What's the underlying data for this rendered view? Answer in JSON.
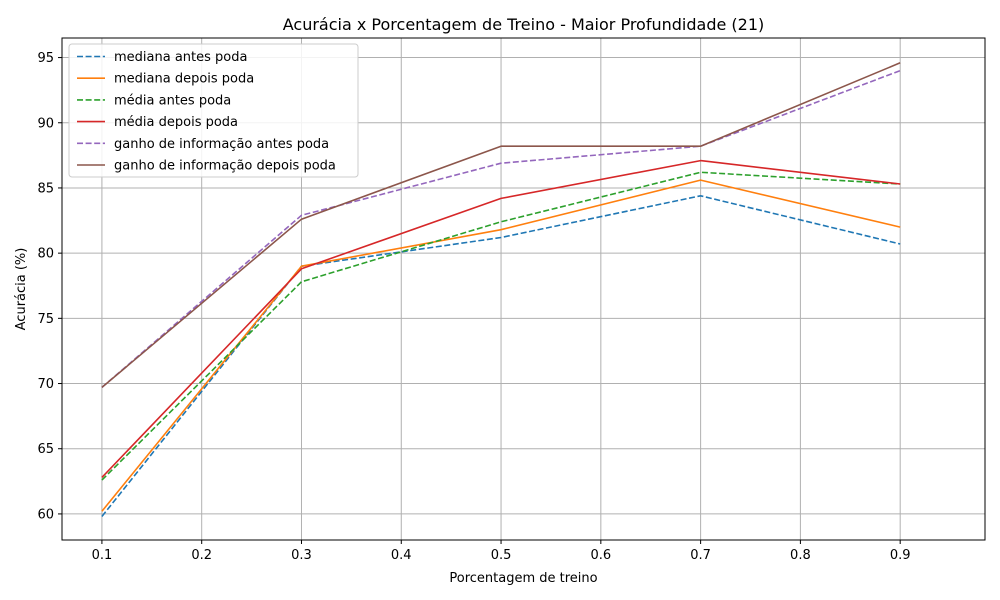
{
  "chart_data": {
    "type": "line",
    "title": "Acurácia x Porcentagem de Treino - Maior Profundidade (21)",
    "xlabel": "Porcentagem de treino",
    "ylabel": "Acurácia (%)",
    "xlim": [
      0.06,
      0.985
    ],
    "ylim": [
      58.0,
      96.5
    ],
    "xticks": [
      "0.1",
      "0.2",
      "0.3",
      "0.4",
      "0.5",
      "0.6",
      "0.7",
      "0.8",
      "0.9"
    ],
    "yticks": [
      "60",
      "65",
      "70",
      "75",
      "80",
      "85",
      "90",
      "95"
    ],
    "grid": true,
    "legend_position": "top-left",
    "x": [
      0.1,
      0.3,
      0.5,
      0.7,
      0.9
    ],
    "series": [
      {
        "name": "mediana antes poda",
        "values": [
          59.8,
          79.0,
          81.2,
          84.4,
          80.7
        ],
        "color": "#1f77b4",
        "dash": true
      },
      {
        "name": "mediana depois poda",
        "values": [
          60.2,
          79.0,
          81.8,
          85.6,
          82.0
        ],
        "color": "#ff7f0e",
        "dash": false
      },
      {
        "name": "média antes poda",
        "values": [
          62.6,
          77.8,
          82.4,
          86.2,
          85.3
        ],
        "color": "#2ca02c",
        "dash": true
      },
      {
        "name": "média depois poda",
        "values": [
          62.8,
          78.8,
          84.2,
          87.1,
          85.3
        ],
        "color": "#d62728",
        "dash": false
      },
      {
        "name": "ganho de informação antes poda",
        "values": [
          69.7,
          82.9,
          86.9,
          88.2,
          94.0
        ],
        "color": "#9467bd",
        "dash": true
      },
      {
        "name": "ganho de informação depois poda",
        "values": [
          69.7,
          82.6,
          88.2,
          88.2,
          94.6
        ],
        "color": "#8c564b",
        "dash": false
      }
    ]
  }
}
